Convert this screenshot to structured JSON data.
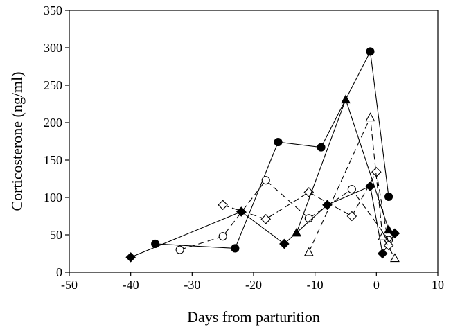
{
  "chart_data": {
    "type": "line",
    "title": "",
    "xlabel": "Days from parturition",
    "ylabel": "Corticosterone (ng/ml)",
    "xlim": [
      -50,
      10
    ],
    "ylim": [
      0,
      350
    ],
    "xticks": [
      -50,
      -40,
      -30,
      -20,
      -10,
      0,
      10
    ],
    "yticks": [
      0,
      50,
      100,
      150,
      200,
      250,
      300,
      350
    ],
    "xtick_labels": [
      "-50",
      "-40",
      "-30",
      "-20",
      "-10",
      "0",
      "10"
    ],
    "ytick_labels": [
      "0",
      "50",
      "100",
      "150",
      "200",
      "250",
      "300",
      "350"
    ],
    "grid": false,
    "legend": "none",
    "series": [
      {
        "marker": "filled-circle",
        "line": "solid",
        "color": "#000000",
        "points": [
          {
            "x": -36,
            "y": 38
          },
          {
            "x": -23,
            "y": 32
          },
          {
            "x": -16,
            "y": 174
          },
          {
            "x": -9,
            "y": 167
          },
          {
            "x": -1,
            "y": 295
          },
          {
            "x": 2,
            "y": 101
          }
        ]
      },
      {
        "marker": "open-circle",
        "line": "dashed",
        "color": "#000000",
        "points": [
          {
            "x": -32,
            "y": 30
          },
          {
            "x": -25,
            "y": 48
          },
          {
            "x": -18,
            "y": 123
          },
          {
            "x": -11,
            "y": 72
          },
          {
            "x": -4,
            "y": 111
          },
          {
            "x": 2,
            "y": 43
          }
        ]
      },
      {
        "marker": "filled-diamond",
        "line": "solid",
        "color": "#000000",
        "points": [
          {
            "x": -40,
            "y": 20
          },
          {
            "x": -22,
            "y": 81
          },
          {
            "x": -15,
            "y": 38
          },
          {
            "x": -8,
            "y": 90
          },
          {
            "x": -1,
            "y": 115
          },
          {
            "x": 1,
            "y": 25
          },
          {
            "x": 3,
            "y": 52
          }
        ]
      },
      {
        "marker": "open-diamond",
        "line": "dashed",
        "color": "#000000",
        "points": [
          {
            "x": -25,
            "y": 90
          },
          {
            "x": -18,
            "y": 71
          },
          {
            "x": -11,
            "y": 107
          },
          {
            "x": -4,
            "y": 75
          },
          {
            "x": 0,
            "y": 134
          },
          {
            "x": 2,
            "y": 36
          }
        ]
      },
      {
        "marker": "filled-triangle",
        "line": "solid",
        "color": "#000000",
        "points": [
          {
            "x": -13,
            "y": 53
          },
          {
            "x": -5,
            "y": 231
          },
          {
            "x": 2,
            "y": 57
          }
        ]
      },
      {
        "marker": "open-triangle",
        "line": "dashed",
        "color": "#000000",
        "points": [
          {
            "x": -11,
            "y": 27
          },
          {
            "x": -1,
            "y": 207
          },
          {
            "x": 1,
            "y": 48
          },
          {
            "x": 3,
            "y": 19
          }
        ]
      }
    ]
  }
}
